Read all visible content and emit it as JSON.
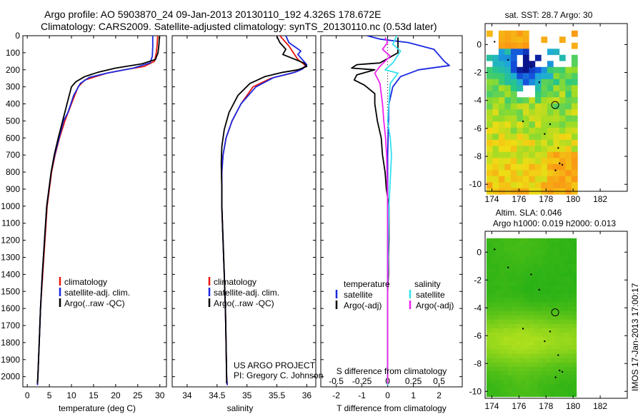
{
  "header": {
    "line1": "Argo profile: AO 5903870_24 09-Jan-2013 20130110_192 4.326S 178.672E",
    "line2": "Climatology: CARS2009. Satellite-adjusted climatology: synTS_20130110.nc (0.53d later)"
  },
  "colors": {
    "climatology": "#e8160c",
    "satellite": "#1a28e0",
    "argo": "#000000",
    "t_satellite": "#1a28e0",
    "s_satellite": "#33e0ee",
    "s_argo": "#ee22ee"
  },
  "chart_data": [
    {
      "id": "temperature",
      "type": "line",
      "xlabel": "temperature (deg C)",
      "ylabel": "",
      "xlim": [
        -1,
        31.5
      ],
      "ylim": [
        2060,
        0
      ],
      "xticks": [
        0,
        5,
        10,
        15,
        20,
        25,
        30
      ],
      "yticks": [
        0,
        100,
        200,
        300,
        400,
        500,
        600,
        700,
        800,
        900,
        1000,
        1100,
        1200,
        1300,
        1400,
        1500,
        1600,
        1700,
        1800,
        1900,
        2000
      ],
      "legend": [
        "climatology",
        "satellite-adj. clim.",
        "Argo(..raw -QC)"
      ],
      "series": [
        {
          "name": "climatology",
          "color_key": "climatology",
          "points": [
            [
              29.5,
              0
            ],
            [
              29.4,
              50
            ],
            [
              29.2,
              100
            ],
            [
              28.8,
              150
            ],
            [
              26.5,
              180
            ],
            [
              22,
              200
            ],
            [
              18,
              220
            ],
            [
              13,
              260
            ],
            [
              11.5,
              300
            ],
            [
              10,
              400
            ],
            [
              8.5,
              500
            ],
            [
              7.3,
              600
            ],
            [
              6.3,
              700
            ],
            [
              5.5,
              800
            ],
            [
              5,
              900
            ],
            [
              4.5,
              1000
            ],
            [
              4,
              1200
            ],
            [
              3.5,
              1400
            ],
            [
              3,
              1600
            ],
            [
              2.7,
              1800
            ],
            [
              2.4,
              2000
            ],
            [
              2.3,
              2050
            ]
          ]
        },
        {
          "name": "satellite-adj. clim.",
          "color_key": "satellite",
          "points": [
            [
              28.4,
              0
            ],
            [
              28.4,
              60
            ],
            [
              28.3,
              120
            ],
            [
              27.8,
              160
            ],
            [
              24,
              190
            ],
            [
              18,
              220
            ],
            [
              14,
              245
            ],
            [
              12,
              280
            ],
            [
              10.5,
              350
            ],
            [
              9.2,
              450
            ],
            [
              8.2,
              500
            ],
            [
              7.2,
              600
            ],
            [
              6.2,
              700
            ],
            [
              5.4,
              800
            ],
            [
              4.9,
              900
            ],
            [
              4.4,
              1000
            ],
            [
              3.9,
              1200
            ],
            [
              3.4,
              1400
            ],
            [
              3,
              1600
            ],
            [
              2.7,
              1800
            ],
            [
              2.4,
              2000
            ],
            [
              2.3,
              2050
            ]
          ]
        },
        {
          "name": "Argo(..raw -QC)",
          "color_key": "argo",
          "points": [
            [
              29.9,
              5
            ],
            [
              29.8,
              50
            ],
            [
              29.6,
              100
            ],
            [
              29,
              140
            ],
            [
              26,
              165
            ],
            [
              20,
              190
            ],
            [
              16,
              215
            ],
            [
              13,
              240
            ],
            [
              11,
              270
            ],
            [
              10,
              300
            ],
            [
              9,
              400
            ],
            [
              8,
              500
            ],
            [
              7,
              600
            ],
            [
              6.1,
              700
            ],
            [
              5.4,
              800
            ],
            [
              4.9,
              900
            ],
            [
              4.4,
              1000
            ],
            [
              3.9,
              1200
            ],
            [
              3.4,
              1400
            ],
            [
              3,
              1600
            ],
            [
              2.7,
              1800
            ],
            [
              2.4,
              2000
            ],
            [
              2.3,
              2040
            ]
          ]
        }
      ]
    },
    {
      "id": "salinity",
      "type": "line",
      "xlabel": "salinity",
      "ylabel": "",
      "xlim": [
        33.75,
        36.15
      ],
      "ylim": [
        2060,
        0
      ],
      "xticks": [
        34,
        34.5,
        35,
        35.5,
        36
      ],
      "legend": [
        "climatology",
        "satellite-adj. clim.",
        "Argo(..raw -QC)"
      ],
      "annotation": [
        "US ARGO PROJECT",
        "PI: Gregory C. Johnson"
      ],
      "series": [
        {
          "name": "climatology",
          "color_key": "climatology",
          "points": [
            [
              35.55,
              0
            ],
            [
              35.7,
              60
            ],
            [
              35.85,
              140
            ],
            [
              35.98,
              175
            ],
            [
              35.9,
              200
            ],
            [
              35.75,
              220
            ],
            [
              35.4,
              250
            ],
            [
              35.1,
              300
            ],
            [
              34.9,
              400
            ],
            [
              34.75,
              500
            ],
            [
              34.65,
              600
            ],
            [
              34.6,
              700
            ],
            [
              34.58,
              800
            ],
            [
              34.58,
              900
            ],
            [
              34.58,
              1000
            ],
            [
              34.6,
              1200
            ],
            [
              34.62,
              1400
            ],
            [
              34.64,
              1600
            ],
            [
              34.65,
              1800
            ],
            [
              34.66,
              2000
            ],
            [
              34.67,
              2050
            ]
          ]
        },
        {
          "name": "satellite-adj. clim.",
          "color_key": "satellite",
          "points": [
            [
              35.65,
              0
            ],
            [
              35.7,
              40
            ],
            [
              35.9,
              90
            ],
            [
              35.85,
              110
            ],
            [
              36.0,
              170
            ],
            [
              35.93,
              195
            ],
            [
              35.8,
              215
            ],
            [
              35.45,
              245
            ],
            [
              35.15,
              300
            ],
            [
              34.9,
              400
            ],
            [
              34.75,
              500
            ],
            [
              34.65,
              600
            ],
            [
              34.6,
              700
            ],
            [
              34.58,
              800
            ],
            [
              34.58,
              900
            ],
            [
              34.58,
              1000
            ],
            [
              34.6,
              1200
            ],
            [
              34.62,
              1400
            ],
            [
              34.64,
              1600
            ],
            [
              34.65,
              1800
            ],
            [
              34.66,
              2000
            ],
            [
              34.67,
              2050
            ]
          ]
        },
        {
          "name": "Argo(..raw -QC)",
          "color_key": "argo",
          "points": [
            [
              35.5,
              5
            ],
            [
              35.55,
              40
            ],
            [
              35.65,
              80
            ],
            [
              35.6,
              110
            ],
            [
              35.95,
              160
            ],
            [
              36.0,
              180
            ],
            [
              35.85,
              200
            ],
            [
              35.6,
              215
            ],
            [
              35.3,
              240
            ],
            [
              35.05,
              280
            ],
            [
              34.85,
              350
            ],
            [
              34.7,
              450
            ],
            [
              34.62,
              550
            ],
            [
              34.58,
              650
            ],
            [
              34.57,
              750
            ],
            [
              34.58,
              900
            ],
            [
              34.58,
              1000
            ],
            [
              34.6,
              1200
            ],
            [
              34.62,
              1400
            ],
            [
              34.64,
              1600
            ],
            [
              34.65,
              1800
            ],
            [
              34.66,
              2000
            ],
            [
              34.66,
              2040
            ]
          ]
        }
      ]
    },
    {
      "id": "difference",
      "type": "line",
      "xlabel": "T difference from climatology",
      "x2label": "S difference from climatology",
      "xlim": [
        -2.6,
        2.9
      ],
      "ylim": [
        2060,
        0
      ],
      "xticks": [
        -2,
        -1,
        0,
        1,
        2
      ],
      "x2ticks": [
        -0.5,
        -0.25,
        0,
        0.25,
        0.5
      ],
      "x2_scale": 4,
      "legend_headers": [
        "temperature",
        "salinity"
      ],
      "legend": [
        "satellite",
        "Argo(-adj)",
        "satellite",
        "Argo(-adj)"
      ],
      "series": [
        {
          "name": "T satellite",
          "color_key": "t_satellite",
          "points": [
            [
              -0.8,
              0
            ],
            [
              -0.3,
              20
            ],
            [
              0.8,
              40
            ],
            [
              1.8,
              80
            ],
            [
              2.2,
              150
            ],
            [
              2.4,
              175
            ],
            [
              1.2,
              200
            ],
            [
              0.5,
              240
            ],
            [
              0.2,
              300
            ],
            [
              0.05,
              400
            ],
            [
              0,
              700
            ],
            [
              0,
              2050
            ]
          ]
        },
        {
          "name": "T Argo(-adj)",
          "color_key": "argo",
          "points": [
            [
              0.4,
              10
            ],
            [
              0.4,
              100
            ],
            [
              -0.3,
              160
            ],
            [
              -1.2,
              170
            ],
            [
              -1.4,
              190
            ],
            [
              -0.5,
              200
            ],
            [
              -1.2,
              230
            ],
            [
              -1.3,
              260
            ],
            [
              -0.9,
              290
            ],
            [
              -0.5,
              340
            ],
            [
              -0.5,
              400
            ],
            [
              -0.4,
              500
            ],
            [
              -0.25,
              600
            ],
            [
              -0.2,
              700
            ],
            [
              -0.1,
              800
            ],
            [
              -0.05,
              900
            ],
            [
              0.05,
              1000
            ],
            [
              0.05,
              1200
            ],
            [
              0.03,
              1300
            ],
            [
              0.03,
              1400
            ],
            [
              0,
              1500
            ],
            [
              0,
              2030
            ]
          ]
        },
        {
          "name": "S satellite",
          "color_key": "s_satellite",
          "points": [
            [
              0.35,
              0
            ],
            [
              0.2,
              50
            ],
            [
              0.5,
              90
            ],
            [
              0.2,
              160
            ],
            [
              -0.1,
              200
            ],
            [
              0.4,
              220
            ],
            [
              0.1,
              280
            ],
            [
              0.05,
              400
            ],
            [
              0,
              500
            ],
            [
              0.1,
              600
            ],
            [
              0.15,
              700
            ],
            [
              0.05,
              1000
            ],
            [
              0,
              1500
            ],
            [
              0,
              2050
            ]
          ]
        },
        {
          "name": "S Argo(-adj)",
          "color_key": "s_argo",
          "points": [
            [
              -0.1,
              10
            ],
            [
              0,
              40
            ],
            [
              -0.2,
              80
            ],
            [
              0.1,
              120
            ],
            [
              -0.3,
              180
            ],
            [
              -0.5,
              220
            ],
            [
              -0.3,
              280
            ],
            [
              -0.2,
              400
            ],
            [
              -0.15,
              500
            ],
            [
              -0.08,
              600
            ],
            [
              -0.04,
              700
            ],
            [
              0,
              1000
            ],
            [
              0,
              2040
            ]
          ]
        }
      ]
    },
    {
      "id": "sst-map",
      "type": "heatmap",
      "title": "sat. SST: 28.7  Argo: 30",
      "xlim": [
        173.5,
        184
      ],
      "ylim": [
        -10.5,
        1.5
      ],
      "xticks": [
        174,
        176,
        178,
        180,
        182
      ],
      "yticks": [
        0,
        -2,
        -4,
        -6,
        -8,
        -10
      ],
      "marker": {
        "lon": 178.672,
        "lat": -4.326
      }
    },
    {
      "id": "sla-map",
      "type": "heatmap",
      "title_line1": "Altim. SLA: 0.046",
      "title_line2": "Argo h1000: 0.019 h2000: 0.013",
      "xlim": [
        173.5,
        184
      ],
      "ylim": [
        -10.5,
        1.5
      ],
      "xticks": [
        174,
        176,
        178,
        180,
        182
      ],
      "yticks": [
        0,
        -2,
        -4,
        -6,
        -8,
        -10
      ],
      "marker": {
        "lon": 178.672,
        "lat": -4.326
      }
    }
  ],
  "footer": {
    "imos_stamp": "IMOS 17-Jan-2013 17:00:17"
  }
}
